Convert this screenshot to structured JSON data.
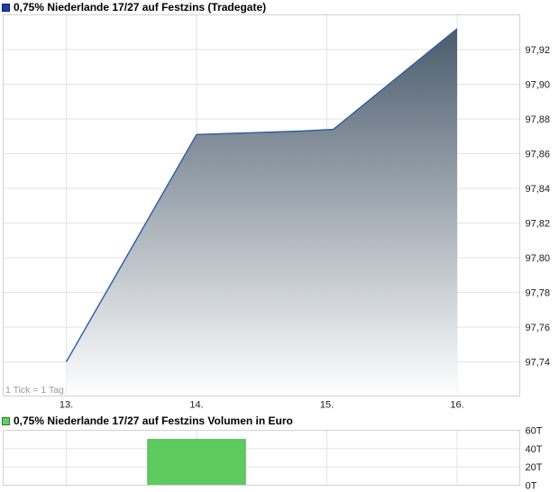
{
  "price_chart": {
    "title": "0,75% Niederlande 17/27 auf Festzins (Tradegate)",
    "tick_note": "1 Tick = 1 Tag",
    "colors": {
      "legend": "#1e3ea8",
      "legend_border": "#0d1d66",
      "line": "#2d5da1",
      "fill_top": "#48596a",
      "fill_bottom": "#ffffff",
      "grid": "#e3e3e3",
      "border": "#d2d2d2",
      "label": "#1a1a1a",
      "note": "#9a9a9a"
    }
  },
  "volume_chart": {
    "title": "0,75% Niederlande 17/27 auf Festzins Volumen in Euro",
    "colors": {
      "legend": "#66cd66",
      "legend_border": "#1e821e",
      "bar": "#5dcb5d",
      "bar_border": "#4db34d",
      "grid": "#e3e3e3",
      "border": "#d2d2d2",
      "label": "#1a1a1a"
    }
  },
  "chart_data": [
    {
      "type": "area",
      "title": "0,75% Niederlande 17/27 auf Festzins (Tradegate)",
      "x": [
        13,
        14,
        14.4,
        14.8,
        15.05,
        16
      ],
      "y": [
        97.74,
        97.871,
        97.872,
        97.873,
        97.874,
        97.932
      ],
      "xticks": [
        {
          "label": "13.",
          "value": 13
        },
        {
          "label": "14.",
          "value": 14
        },
        {
          "label": "15.",
          "value": 15
        },
        {
          "label": "16.",
          "value": 16
        }
      ],
      "yticks": [
        {
          "label": "97,92",
          "value": 97.92
        },
        {
          "label": "97,90",
          "value": 97.9
        },
        {
          "label": "97,88",
          "value": 97.88
        },
        {
          "label": "97,86",
          "value": 97.86
        },
        {
          "label": "97,84",
          "value": 97.84
        },
        {
          "label": "97,82",
          "value": 97.82
        },
        {
          "label": "97,80",
          "value": 97.8
        },
        {
          "label": "97,78",
          "value": 97.78
        },
        {
          "label": "97,76",
          "value": 97.76
        },
        {
          "label": "97,74",
          "value": 97.74
        }
      ],
      "xlim": [
        12.5156,
        16.481
      ],
      "ylim": [
        97.7203,
        97.94
      ],
      "grid": true,
      "note": "1 Tick = 1 Tag",
      "legend_position": "title-row"
    },
    {
      "type": "bar",
      "title": "0,75% Niederlande 17/27 auf Festzins Volumen in Euro",
      "x": [
        14
      ],
      "values": [
        50000
      ],
      "bar_width_days": 0.75,
      "yticks": [
        {
          "label": "60T",
          "value": 60000
        },
        {
          "label": "40T",
          "value": 40000
        },
        {
          "label": "20T",
          "value": 20000
        },
        {
          "label": "0T",
          "value": 0
        }
      ],
      "xlim": [
        12.5156,
        16.481
      ],
      "ylim": [
        0,
        60000
      ],
      "grid": true
    }
  ]
}
